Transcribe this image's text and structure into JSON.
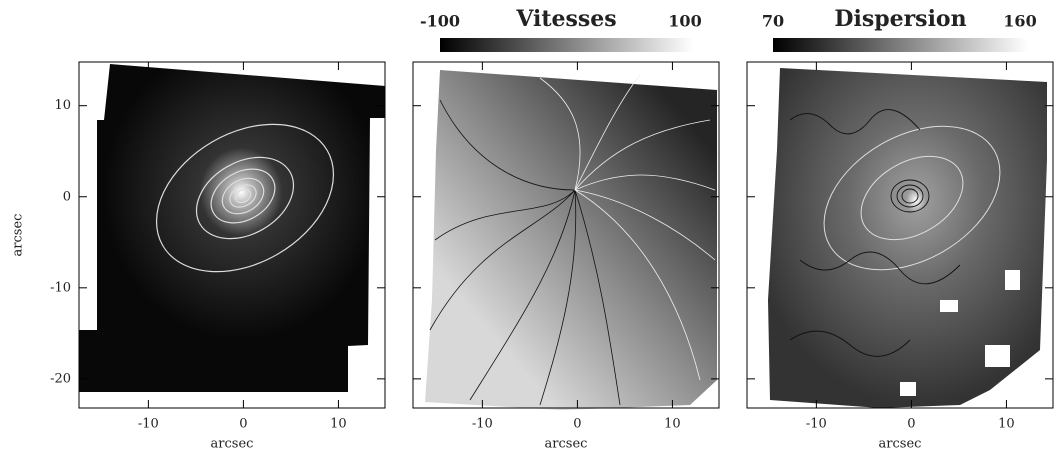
{
  "axes": {
    "xlim": [
      -17.3,
      14.9
    ],
    "ylim": [
      -23.2,
      14.8
    ],
    "xticks": [
      -10,
      0,
      10
    ],
    "yticks": [
      -20,
      -10,
      0,
      10
    ],
    "xlabel": "arcsec",
    "ylabel": "arcsec"
  },
  "colorbars": [
    {
      "title": "Vitesses",
      "min": -100,
      "max": 100
    },
    {
      "title": "Dispersion",
      "min": 70,
      "max": 160
    }
  ]
}
